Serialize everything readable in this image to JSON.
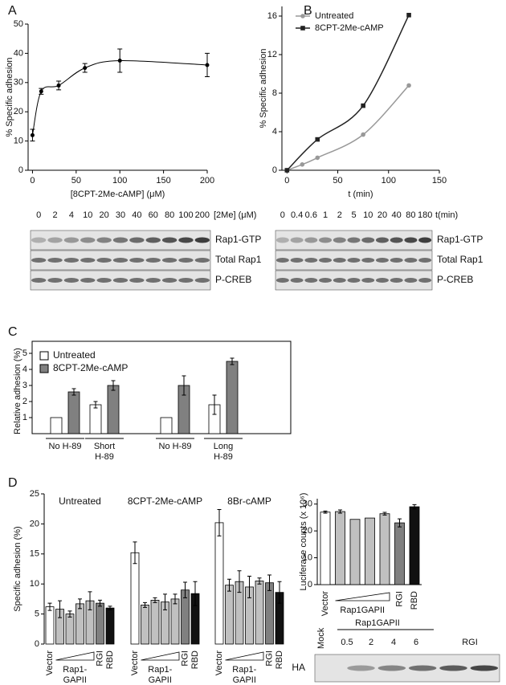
{
  "chart_data": [
    {
      "type": "scatter",
      "panel": "A",
      "x": [
        0,
        10,
        30,
        60,
        100,
        200
      ],
      "values": [
        12,
        27,
        29,
        35,
        37.5,
        36
      ],
      "errors": [
        2,
        1,
        1.5,
        1.5,
        4,
        4
      ],
      "color": "#000000",
      "xlim": [
        -5,
        200
      ],
      "xticks": [
        0,
        50,
        100,
        150,
        200
      ],
      "ylim": [
        0,
        50
      ],
      "yticks": [
        0,
        10,
        20,
        30,
        40,
        50
      ],
      "xlabel": "[8CPT-2Me-cAMP] (μM)",
      "ylabel": "% Specific adhesion"
    },
    {
      "type": "line",
      "panel": "B",
      "series": [
        {
          "name": "Untreated",
          "color": "#999999",
          "x": [
            0,
            15,
            30,
            75,
            120
          ],
          "values": [
            0,
            0.6,
            1.3,
            3.7,
            8.8
          ]
        },
        {
          "name": "8CPT-2Me-cAMP",
          "color": "#222222",
          "x": [
            0,
            30,
            75,
            120
          ],
          "values": [
            0,
            3.2,
            6.7,
            16.1
          ]
        }
      ],
      "xlim": [
        -5,
        150
      ],
      "xticks": [
        0,
        50,
        100,
        150
      ],
      "ylim": [
        0,
        17
      ],
      "yticks": [
        0,
        4,
        8,
        12,
        16
      ],
      "xlabel": "t (min)",
      "ylabel": "% Specific adhesion"
    },
    {
      "type": "bar",
      "panel": "C",
      "categories": [
        [
          "No H-89"
        ],
        [
          "Short",
          "H-89"
        ],
        [
          "No H-89"
        ],
        [
          "Long",
          "H-89"
        ]
      ],
      "series": [
        {
          "name": "Untreated",
          "color": "#ffffff",
          "values": [
            1,
            1.8,
            1,
            1.8
          ],
          "errors": [
            null,
            0.2,
            null,
            0.6
          ]
        },
        {
          "name": "8CPT-2Me-cAMP",
          "color": "#808080",
          "values": [
            2.6,
            3,
            3,
            4.5
          ],
          "errors": [
            0.2,
            0.3,
            0.6,
            0.2
          ]
        }
      ],
      "ylim": [
        0,
        5.3
      ],
      "yticks": [
        1,
        2,
        3,
        4,
        5
      ],
      "ylabel": "Relative adhesion (%)"
    },
    {
      "type": "bar",
      "panel": "D",
      "categories": [
        "Vector",
        null,
        null,
        null,
        null,
        "RGI",
        "RBD"
      ],
      "wedge_label": [
        "Rap1-",
        "GAPII"
      ],
      "colors": [
        "#ffffff",
        "#c0c0c0",
        "#c0c0c0",
        "#c0c0c0",
        "#c0c0c0",
        "#808080",
        "#111111"
      ],
      "series": [
        {
          "name": "Untreated",
          "values": [
            6.2,
            5.8,
            5,
            6.7,
            7.2,
            6.8,
            6
          ],
          "errors": [
            0.6,
            1.4,
            0.5,
            0.8,
            1.5,
            0.5,
            0.3
          ]
        },
        {
          "name": "8CPT-2Me-cAMP",
          "values": [
            15.2,
            6.5,
            7.3,
            7,
            7.5,
            9,
            8.4
          ],
          "errors": [
            1.8,
            0.4,
            0.4,
            1.3,
            0.8,
            1.3,
            2
          ]
        },
        {
          "name": "8Br-cAMP",
          "values": [
            20.2,
            9.8,
            10.4,
            9.5,
            10.5,
            10.2,
            8.6
          ],
          "errors": [
            2.2,
            1,
            1.8,
            1.8,
            0.5,
            1.3,
            1.8
          ]
        }
      ],
      "ylim": [
        0,
        25
      ],
      "yticks": [
        0,
        5,
        10,
        15,
        20,
        25
      ],
      "ylabel": "Specific adhesion (%)"
    },
    {
      "type": "bar",
      "categories": [
        "Vector",
        null,
        null,
        null,
        null,
        "RGI",
        "RBD"
      ],
      "wedge_label": [
        "Rap1GAPII"
      ],
      "colors": [
        "#ffffff",
        "#c0c0c0",
        "#c0c0c0",
        "#c0c0c0",
        "#c0c0c0",
        "#808080",
        "#111111"
      ],
      "values": [
        27,
        27.2,
        24.3,
        24.8,
        26.4,
        23,
        29
      ],
      "errors": [
        0.4,
        0.6,
        null,
        null,
        0.5,
        1.5,
        0.8
      ],
      "ylim": [
        0,
        32
      ],
      "yticks": [
        0,
        10,
        20,
        30
      ],
      "ylabel": "Luciferase counts (x 10⁶)"
    }
  ],
  "blots": [
    {
      "lanes": [
        "0",
        "2",
        "4",
        "10",
        "20",
        "30",
        "40",
        "60",
        "80",
        "100",
        "200"
      ],
      "unit": "[2Me] (μM)",
      "rows": [
        "Rap1-GTP",
        "Total Rap1",
        "P-CREB"
      ]
    },
    {
      "lanes": [
        "0",
        "0.4",
        "0.6",
        "1",
        "2",
        "5",
        "10",
        "20",
        "40",
        "80",
        "180"
      ],
      "unit": "t(min)",
      "rows": [
        "Rap1-GTP",
        "Total Rap1",
        "P-CREB"
      ]
    },
    {
      "lanes": [
        "Mock",
        "0.5",
        "2",
        "4",
        "6",
        "RGI"
      ],
      "unit": "Rap1GAPII",
      "rows": [
        "HA"
      ]
    }
  ]
}
